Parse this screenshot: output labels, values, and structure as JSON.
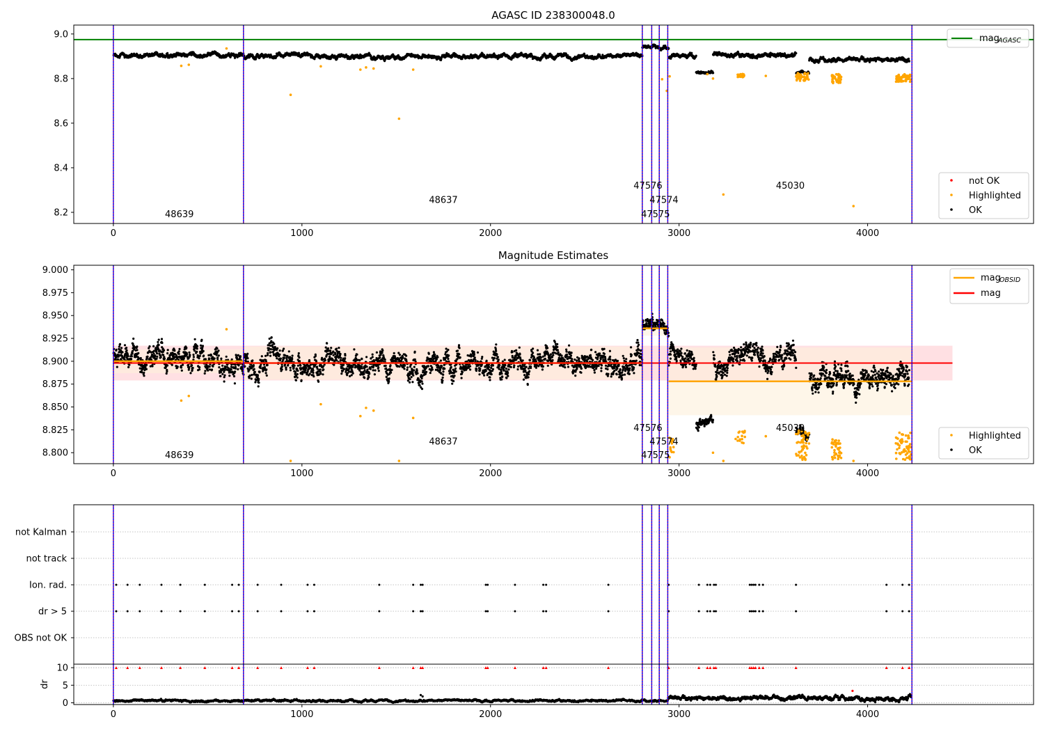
{
  "figure": {
    "background": "#ffffff"
  },
  "colors": {
    "ok": "#000000",
    "highlighted": "#ffa500",
    "not_ok": "#ff0000",
    "agasc_line": "#008000",
    "mag_line": "#ff0000",
    "mag_obsid_line": "#ffa500",
    "obs_boundary": "#800080",
    "obs_boundary_inner": "#0000ff",
    "mag_band": "#ffdde0",
    "obsid_band": "#fdf0da",
    "grid": "#b0b0b0"
  },
  "chart_data": [
    {
      "type": "scatter",
      "title": "AGASC ID 238300048.0",
      "xlim": [
        -210,
        4880
      ],
      "ylim": [
        8.15,
        9.04
      ],
      "xticks": [
        0,
        1000,
        2000,
        3000,
        4000
      ],
      "yticks": [
        8.2,
        8.4,
        8.6,
        8.8,
        9.0
      ],
      "ytick_labels": [
        "8.2",
        "8.4",
        "8.6",
        "8.8",
        "9.0"
      ],
      "mag_agasc": 8.975,
      "segments": [
        {
          "x0": 0,
          "x1": 690,
          "center": 8.905,
          "amp": 0.012
        },
        {
          "x0": 690,
          "x1": 2805,
          "center": 8.9,
          "amp": 0.012
        },
        {
          "x0": 2805,
          "x1": 2945,
          "center": 8.94,
          "amp": 0.01
        },
        {
          "x0": 2945,
          "x1": 3090,
          "center": 8.9,
          "amp": 0.012
        },
        {
          "x0": 3090,
          "x1": 3180,
          "center": 8.83,
          "amp": 0.008
        },
        {
          "x0": 3180,
          "x1": 3620,
          "center": 8.905,
          "amp": 0.012
        },
        {
          "x0": 3620,
          "x1": 3690,
          "center": 8.825,
          "amp": 0.008
        },
        {
          "x0": 3690,
          "x1": 4220,
          "center": 8.885,
          "amp": 0.012
        }
      ],
      "highlighted_points": [
        {
          "x": 360,
          "y": 8.857
        },
        {
          "x": 400,
          "y": 8.862
        },
        {
          "x": 600,
          "y": 8.935
        },
        {
          "x": 940,
          "y": 8.727
        },
        {
          "x": 1100,
          "y": 8.855
        },
        {
          "x": 1310,
          "y": 8.84
        },
        {
          "x": 1340,
          "y": 8.85
        },
        {
          "x": 1380,
          "y": 8.845
        },
        {
          "x": 1515,
          "y": 8.62
        },
        {
          "x": 1590,
          "y": 8.84
        },
        {
          "x": 2910,
          "y": 8.797
        },
        {
          "x": 2935,
          "y": 8.745
        },
        {
          "x": 2950,
          "y": 8.81
        },
        {
          "x": 3150,
          "y": 8.82
        },
        {
          "x": 3180,
          "y": 8.8
        },
        {
          "x": 3235,
          "y": 8.28
        },
        {
          "x": 3460,
          "y": 8.812
        },
        {
          "x": 3925,
          "y": 8.228
        }
      ],
      "highlighted_clusters": [
        {
          "x0": 3310,
          "x1": 3350,
          "y0": 8.805,
          "y1": 8.822,
          "n": 18
        },
        {
          "x0": 3620,
          "x1": 3690,
          "y0": 8.79,
          "y1": 8.825,
          "n": 50
        },
        {
          "x0": 3810,
          "x1": 3860,
          "y0": 8.78,
          "y1": 8.82,
          "n": 40
        },
        {
          "x0": 4150,
          "x1": 4230,
          "y0": 8.785,
          "y1": 8.82,
          "n": 60
        }
      ],
      "obs_boundaries": [
        0,
        690,
        2805,
        2855,
        2895,
        2940,
        4235
      ],
      "obs_labels": [
        {
          "text": "48639",
          "x": 350,
          "y": 8.19
        },
        {
          "text": "48637",
          "x": 1750,
          "y": 8.255
        },
        {
          "text": "47576",
          "x": 2835,
          "y": 8.318
        },
        {
          "text": "47574",
          "x": 2920,
          "y": 8.255
        },
        {
          "text": "47575",
          "x": 2875,
          "y": 8.19
        },
        {
          "text": "45030",
          "x": 3590,
          "y": 8.318
        }
      ],
      "legend_top": {
        "label": "mag",
        "subscript": "AGASC"
      },
      "legend_bottom": [
        {
          "label": "not OK",
          "color_key": "not_ok"
        },
        {
          "label": "Highlighted",
          "color_key": "highlighted"
        },
        {
          "label": "OK",
          "color_key": "ok"
        }
      ]
    },
    {
      "type": "scatter",
      "title": "Magnitude Estimates",
      "xlim": [
        -210,
        4880
      ],
      "ylim": [
        8.788,
        9.005
      ],
      "xticks": [
        0,
        1000,
        2000,
        3000,
        4000
      ],
      "yticks": [
        8.8,
        8.825,
        8.85,
        8.875,
        8.9,
        8.925,
        8.95,
        8.975,
        9.0
      ],
      "ytick_labels": [
        "8.800",
        "8.825",
        "8.850",
        "8.875",
        "8.900",
        "8.925",
        "8.950",
        "8.975",
        "9.000"
      ],
      "mag": 8.898,
      "mag_band": [
        8.879,
        8.917
      ],
      "mag_x": [
        0,
        4450
      ],
      "mag_obsid": [
        {
          "x0": 0,
          "x1": 690,
          "value": 8.9,
          "band": [
            8.887,
            8.913
          ]
        },
        {
          "x0": 690,
          "x1": 2805,
          "value": 8.898,
          "band": [
            8.88,
            8.916
          ]
        },
        {
          "x0": 2805,
          "x1": 2945,
          "value": 8.936,
          "band": [
            8.928,
            8.944
          ]
        },
        {
          "x0": 2945,
          "x1": 4235,
          "value": 8.878,
          "band": [
            8.841,
            8.915
          ]
        }
      ],
      "segments": [
        {
          "x0": 0,
          "x1": 690,
          "center": 8.902,
          "amp": 0.016
        },
        {
          "x0": 690,
          "x1": 2805,
          "center": 8.898,
          "amp": 0.016
        },
        {
          "x0": 2805,
          "x1": 2945,
          "center": 8.938,
          "amp": 0.01
        },
        {
          "x0": 2945,
          "x1": 3090,
          "center": 8.9,
          "amp": 0.014
        },
        {
          "x0": 3090,
          "x1": 3180,
          "center": 8.832,
          "amp": 0.008
        },
        {
          "x0": 3180,
          "x1": 3620,
          "center": 8.903,
          "amp": 0.016
        },
        {
          "x0": 3620,
          "x1": 3690,
          "center": 8.826,
          "amp": 0.008
        },
        {
          "x0": 3690,
          "x1": 4220,
          "center": 8.885,
          "amp": 0.016
        }
      ],
      "highlighted_points": [
        {
          "x": 360,
          "y": 8.857
        },
        {
          "x": 400,
          "y": 8.862
        },
        {
          "x": 600,
          "y": 8.935
        },
        {
          "x": 940,
          "y": 8.791
        },
        {
          "x": 1100,
          "y": 8.853
        },
        {
          "x": 1310,
          "y": 8.84
        },
        {
          "x": 1340,
          "y": 8.849
        },
        {
          "x": 1380,
          "y": 8.846
        },
        {
          "x": 1515,
          "y": 8.791
        },
        {
          "x": 1590,
          "y": 8.838
        },
        {
          "x": 2950,
          "y": 8.795
        },
        {
          "x": 3180,
          "y": 8.8
        },
        {
          "x": 3235,
          "y": 8.791
        },
        {
          "x": 3300,
          "y": 8.815
        },
        {
          "x": 3460,
          "y": 8.818
        },
        {
          "x": 3925,
          "y": 8.791
        }
      ],
      "highlighted_clusters": [
        {
          "x0": 2945,
          "x1": 2975,
          "y0": 8.792,
          "y1": 8.823,
          "n": 12
        },
        {
          "x0": 3310,
          "x1": 3350,
          "y0": 8.81,
          "y1": 8.825,
          "n": 15
        },
        {
          "x0": 3620,
          "x1": 3690,
          "y0": 8.792,
          "y1": 8.825,
          "n": 55
        },
        {
          "x0": 3810,
          "x1": 3860,
          "y0": 8.792,
          "y1": 8.815,
          "n": 40
        },
        {
          "x0": 4150,
          "x1": 4230,
          "y0": 8.792,
          "y1": 8.822,
          "n": 60
        }
      ],
      "obs_boundaries": [
        0,
        690,
        2805,
        2855,
        2895,
        2940,
        4235
      ],
      "obs_labels": [
        {
          "text": "48639",
          "x": 350,
          "y": 8.797
        },
        {
          "text": "48637",
          "x": 1750,
          "y": 8.812
        },
        {
          "text": "47576",
          "x": 2835,
          "y": 8.827
        },
        {
          "text": "47574",
          "x": 2920,
          "y": 8.812
        },
        {
          "text": "47575",
          "x": 2875,
          "y": 8.797
        },
        {
          "text": "45030",
          "x": 3590,
          "y": 8.827
        }
      ],
      "legend_top": [
        {
          "label": "mag",
          "subscript": "OBSID",
          "color_key": "mag_obsid_line"
        },
        {
          "label": "mag",
          "subscript": "",
          "color_key": "mag_line"
        }
      ],
      "legend_bottom": [
        {
          "label": "Highlighted",
          "color_key": "highlighted"
        },
        {
          "label": "OK",
          "color_key": "ok"
        }
      ]
    },
    {
      "type": "scatter",
      "title": "",
      "xlim": [
        -210,
        4880
      ],
      "flag_rows": [
        "not Kalman",
        "not track",
        "Ion. rad.",
        "dr > 5",
        "OBS not OK"
      ],
      "flag_events": [
        {
          "row": "Ion. rad.",
          "x": [
            15,
            75,
            140,
            255,
            355,
            485,
            630,
            665,
            765,
            890,
            1030,
            1065,
            1410,
            1590,
            1630,
            1640,
            1975,
            1985,
            2130,
            2280,
            2295,
            2625,
            2945,
            3105,
            3150,
            3165,
            3185,
            3195,
            3375,
            3385,
            3395,
            3405,
            3425,
            3445,
            3620,
            4100,
            4185,
            4220
          ]
        },
        {
          "row": "dr > 5",
          "x": [
            15,
            75,
            140,
            255,
            355,
            485,
            630,
            665,
            765,
            890,
            1030,
            1065,
            1410,
            1590,
            1630,
            1640,
            1975,
            1985,
            2130,
            2280,
            2295,
            2625,
            2945,
            3105,
            3150,
            3165,
            3185,
            3195,
            3375,
            3385,
            3395,
            3405,
            3425,
            3445,
            3620,
            4100,
            4185,
            4220
          ]
        }
      ],
      "obs_boundaries": [
        0,
        690,
        2805,
        2855,
        2895,
        2940,
        4235
      ]
    },
    {
      "type": "scatter",
      "title": "",
      "ylabel": "dr",
      "xlim": [
        -210,
        4880
      ],
      "ylim": [
        -0.5,
        11
      ],
      "xticks": [
        0,
        1000,
        2000,
        3000,
        4000
      ],
      "yticks": [
        0,
        5,
        10
      ],
      "ytick_labels": [
        "0",
        "5",
        "10"
      ],
      "clip_value": 10,
      "segments": [
        {
          "x0": 0,
          "x1": 2940,
          "center": 0.6,
          "amp": 0.35
        },
        {
          "x0": 2940,
          "x1": 4230,
          "center": 1.3,
          "amp": 0.7
        }
      ],
      "spike_points": [
        {
          "x": 1630,
          "y": 2.2
        },
        {
          "x": 1640,
          "y": 1.8
        },
        {
          "x": 3920,
          "y": 3.4
        }
      ],
      "clipped_x": [
        15,
        75,
        140,
        255,
        355,
        485,
        630,
        665,
        765,
        890,
        1030,
        1065,
        1410,
        1590,
        1630,
        1640,
        1975,
        1985,
        2130,
        2280,
        2295,
        2625,
        2945,
        3105,
        3150,
        3165,
        3185,
        3195,
        3375,
        3385,
        3395,
        3405,
        3425,
        3445,
        3620,
        4100,
        4185,
        4220
      ],
      "obs_boundaries": [
        0,
        690,
        2805,
        2855,
        2895,
        2940,
        4235
      ]
    }
  ]
}
